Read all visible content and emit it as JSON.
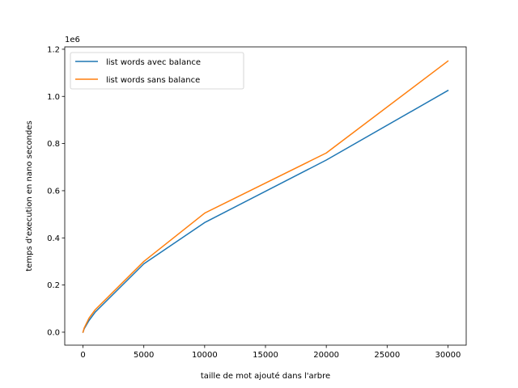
{
  "chart_data": {
    "type": "line",
    "title": "",
    "xlabel": "taille de mot ajouté dans l'arbre",
    "ylabel": "temps d'execution en nano secondes",
    "y_offset_label": "1e6",
    "xlim": [
      -1500,
      31500
    ],
    "ylim": [
      -55000,
      1210000
    ],
    "x_ticks": [
      0,
      5000,
      10000,
      15000,
      20000,
      25000,
      30000
    ],
    "x_tick_labels": [
      "0",
      "5000",
      "10000",
      "15000",
      "20000",
      "25000",
      "30000"
    ],
    "y_ticks": [
      0,
      200000,
      400000,
      600000,
      800000,
      1000000,
      1200000
    ],
    "y_tick_labels": [
      "0.0",
      "0.2",
      "0.4",
      "0.6",
      "0.8",
      "1.0",
      "1.2"
    ],
    "grid": false,
    "legend_position": "top-left",
    "series": [
      {
        "name": "list words avec balance",
        "color": "#1f77b4",
        "x": [
          0,
          100,
          500,
          1000,
          5000,
          10000,
          20000,
          30000
        ],
        "y": [
          0,
          15000,
          50000,
          85000,
          290000,
          465000,
          730000,
          1025000
        ]
      },
      {
        "name": "list words sans balance",
        "color": "#ff7f0e",
        "x": [
          0,
          100,
          500,
          1000,
          5000,
          10000,
          20000,
          30000
        ],
        "y": [
          0,
          18000,
          60000,
          95000,
          300000,
          505000,
          760000,
          1150000
        ]
      }
    ]
  }
}
